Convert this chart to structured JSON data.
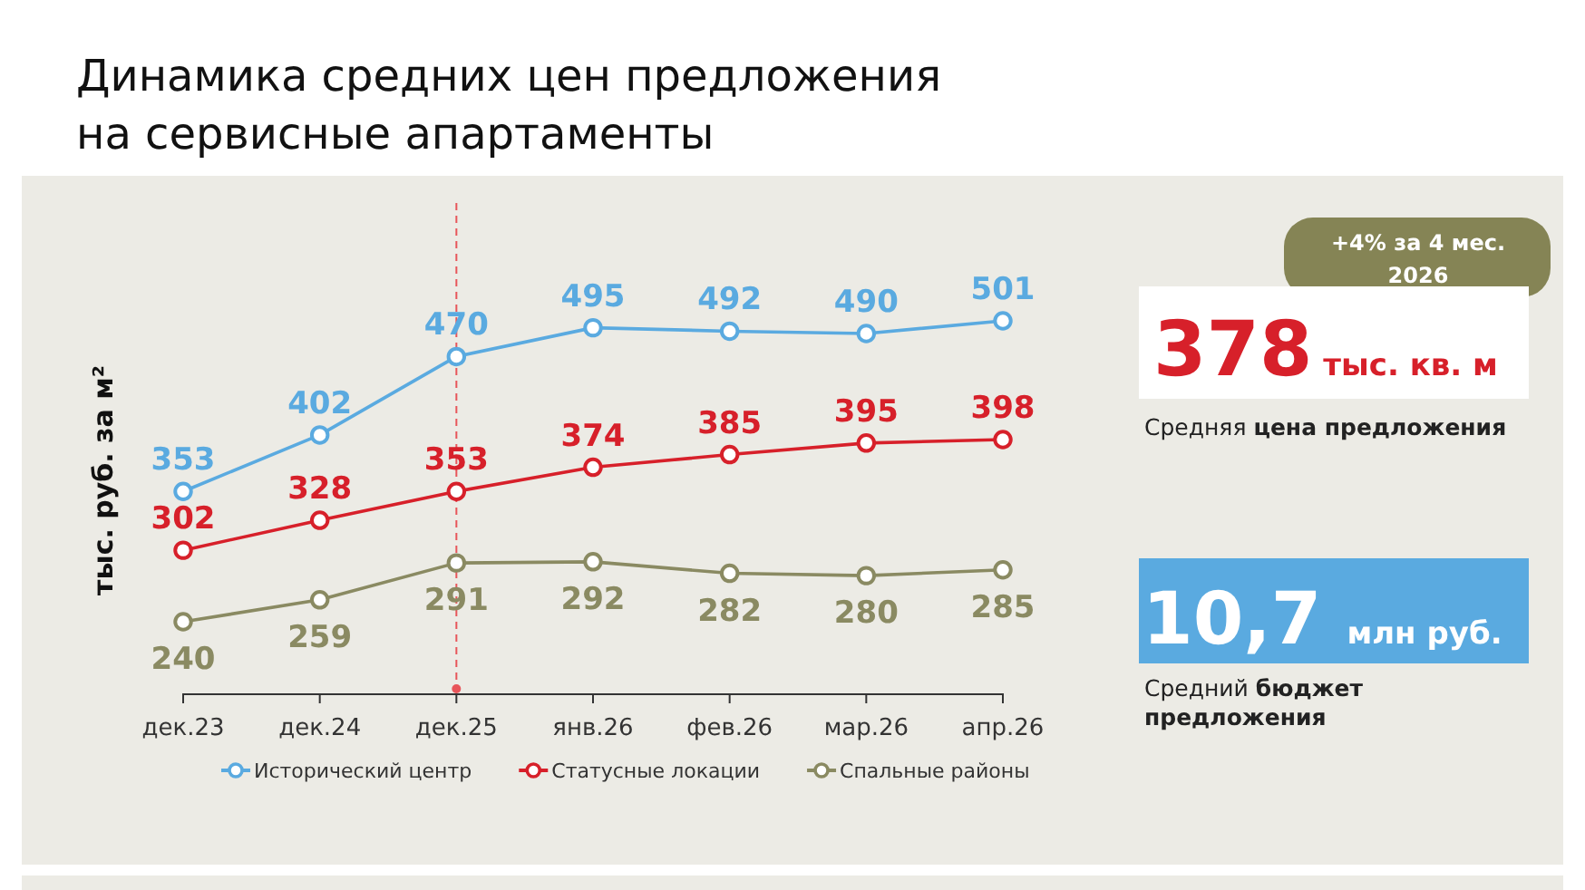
{
  "chart_data": {
    "type": "line",
    "title": "Динамика средних цен предложения на сервисные апартаменты",
    "ylabel": "тыс. руб. за м²",
    "categories": [
      "дек.23",
      "дек.24",
      "дек.25",
      "янв.26",
      "фев.26",
      "мар.26",
      "апр.26"
    ],
    "series": [
      {
        "name": "Исторический центр",
        "color": "#5aaae0",
        "values": [
          353,
          402,
          470,
          495,
          492,
          490,
          501
        ]
      },
      {
        "name": "Статусные локации",
        "color": "#d7202a",
        "values": [
          302,
          328,
          353,
          374,
          385,
          395,
          398
        ]
      },
      {
        "name": "Спальные районы",
        "color": "#8a8a62",
        "values": [
          240,
          259,
          291,
          292,
          282,
          280,
          285
        ]
      }
    ],
    "data_labels": true,
    "marker": "circle",
    "line_style": "solid",
    "legend": "bottom",
    "tick_labels": "x",
    "ref_lines": [
      {
        "axis": "x",
        "value": "дек.25",
        "color": "#e8555a",
        "line_style": "dashed"
      }
    ],
    "annotations": [
      "+4% за 4 мес. 2026",
      "378",
      "тыс. кв. м",
      "Средняя цена предложения",
      "10,7",
      "млн руб.",
      "Средний бюджет предложения"
    ]
  }
}
